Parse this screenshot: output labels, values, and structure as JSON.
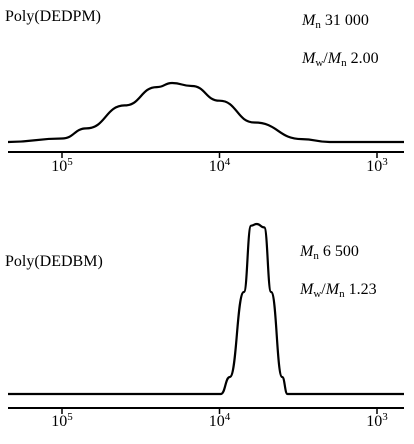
{
  "chart_data": [
    {
      "type": "line",
      "title": "Poly(DEDPM)",
      "stats": {
        "mn_symbol": "M",
        "mn_sub": "n",
        "mn_value": "31 000",
        "pdi_symbol_a": "M",
        "pdi_sub_a": "w",
        "pdi_slash": "/",
        "pdi_symbol_b": "M",
        "pdi_sub_b": "n",
        "pdi_value": "2.00"
      },
      "x_scale": "log",
      "x_reversed": true,
      "xlim": [
        300000,
        500
      ],
      "xticks": [
        {
          "base": "10",
          "exp": "5",
          "value": 100000
        },
        {
          "base": "10",
          "exp": "4",
          "value": 10000
        },
        {
          "base": "10",
          "exp": "3",
          "value": 1000
        }
      ],
      "series": [
        {
          "x": [
            300000,
            100000,
            70000,
            40000,
            25000,
            20000,
            15000,
            10000,
            6000,
            3000,
            2000,
            1000,
            500
          ],
          "y": [
            0.0,
            0.06,
            0.23,
            0.62,
            0.93,
            1.0,
            0.95,
            0.7,
            0.33,
            0.05,
            0.0,
            0.0,
            0.0
          ]
        }
      ],
      "ylim": [
        0,
        1
      ]
    },
    {
      "type": "line",
      "title": "Poly(DEDBM)",
      "stats": {
        "mn_symbol": "M",
        "mn_sub": "n",
        "mn_value": "6 500",
        "pdi_symbol_a": "M",
        "pdi_sub_a": "w",
        "pdi_slash": "/",
        "pdi_symbol_b": "M",
        "pdi_sub_b": "n",
        "pdi_value": "1.23"
      },
      "x_scale": "log",
      "x_reversed": true,
      "xlim": [
        300000,
        500
      ],
      "xticks": [
        {
          "base": "10",
          "exp": "5",
          "value": 100000
        },
        {
          "base": "10",
          "exp": "4",
          "value": 10000
        },
        {
          "base": "10",
          "exp": "3",
          "value": 1000
        }
      ],
      "series": [
        {
          "x": [
            300000,
            20000,
            9800,
            8600,
            7000,
            6300,
            5800,
            5200,
            4700,
            4000,
            3700,
            2000,
            500
          ],
          "y": [
            0.0,
            0.0,
            0.0,
            0.1,
            0.6,
            0.99,
            1.0,
            0.98,
            0.6,
            0.1,
            0.0,
            0.0,
            0.0
          ]
        }
      ],
      "ylim": [
        0,
        1
      ]
    }
  ]
}
